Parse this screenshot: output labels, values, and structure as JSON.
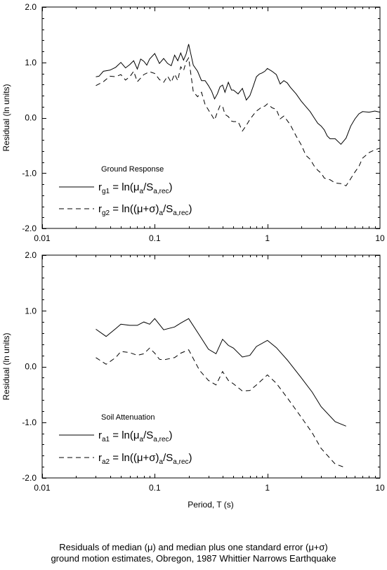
{
  "chart_data": [
    {
      "type": "line",
      "title": "",
      "xlabel": "",
      "ylabel": "Residual (ln units)",
      "xscale": "log",
      "xlim": [
        0.01,
        10
      ],
      "ylim": [
        -2.0,
        2.0
      ],
      "xticks": [
        "0.01",
        "0.1",
        "1",
        "10"
      ],
      "yticks": [
        "2.0",
        "1.0",
        "0.0",
        "-1.0",
        "-2.0"
      ],
      "grid": false,
      "legend_title": "Ground Response",
      "legend_placement": "lower-left",
      "legend": [
        {
          "base": "r",
          "sub": "g1",
          "eq": " = ln(",
          "mid": "μ",
          "mid_sub": "a",
          "slash": "/S",
          "tail_sub": "a,rec",
          "end": ")"
        },
        {
          "base": "r",
          "sub": "g2",
          "eq": " = ln((",
          "mid": "μ+σ)",
          "mid_sub": "a",
          "slash": "/S",
          "tail_sub": "a,rec",
          "end": ")"
        }
      ],
      "series": [
        {
          "style": "solid",
          "x": [
            0.03,
            0.032,
            0.035,
            0.04,
            0.045,
            0.05,
            0.055,
            0.06,
            0.065,
            0.07,
            0.075,
            0.08,
            0.085,
            0.09,
            0.1,
            0.11,
            0.12,
            0.13,
            0.14,
            0.15,
            0.16,
            0.17,
            0.18,
            0.19,
            0.2,
            0.22,
            0.24,
            0.26,
            0.28,
            0.3,
            0.32,
            0.34,
            0.36,
            0.38,
            0.4,
            0.42,
            0.45,
            0.48,
            0.5,
            0.55,
            0.6,
            0.65,
            0.7,
            0.75,
            0.8,
            0.85,
            0.9,
            0.95,
            1.0,
            1.1,
            1.2,
            1.3,
            1.4,
            1.5,
            1.6,
            1.8,
            2.0,
            2.2,
            2.4,
            2.6,
            2.8,
            3.0,
            3.2,
            3.4,
            3.6,
            3.8,
            4.0,
            4.5,
            5.0,
            5.5,
            6.0,
            6.5,
            7.0,
            8.0,
            9.0,
            10.0
          ],
          "values": [
            0.74,
            0.75,
            0.84,
            0.86,
            0.91,
            1.0,
            0.9,
            0.96,
            1.03,
            0.88,
            1.06,
            1.02,
            0.95,
            1.06,
            1.16,
            0.98,
            1.07,
            0.98,
            0.94,
            1.13,
            1.03,
            1.17,
            1.04,
            1.15,
            1.33,
            0.95,
            0.84,
            0.67,
            0.67,
            0.58,
            0.48,
            0.34,
            0.43,
            0.56,
            0.59,
            0.46,
            0.64,
            0.5,
            0.5,
            0.43,
            0.53,
            0.32,
            0.4,
            0.57,
            0.74,
            0.79,
            0.81,
            0.84,
            0.89,
            0.84,
            0.78,
            0.61,
            0.67,
            0.63,
            0.55,
            0.43,
            0.3,
            0.2,
            0.11,
            0.0,
            -0.1,
            -0.15,
            -0.22,
            -0.33,
            -0.38,
            -0.38,
            -0.38,
            -0.48,
            -0.37,
            -0.15,
            -0.02,
            0.07,
            0.11,
            0.1,
            0.12,
            0.1
          ]
        },
        {
          "style": "dashed",
          "x": [
            0.03,
            0.035,
            0.04,
            0.045,
            0.05,
            0.055,
            0.06,
            0.065,
            0.07,
            0.08,
            0.09,
            0.1,
            0.11,
            0.12,
            0.13,
            0.14,
            0.15,
            0.16,
            0.17,
            0.18,
            0.19,
            0.2,
            0.22,
            0.24,
            0.26,
            0.28,
            0.3,
            0.32,
            0.34,
            0.36,
            0.38,
            0.4,
            0.42,
            0.45,
            0.48,
            0.5,
            0.55,
            0.6,
            0.65,
            0.7,
            0.75,
            0.8,
            0.85,
            0.9,
            0.95,
            1.0,
            1.1,
            1.2,
            1.3,
            1.4,
            1.5,
            1.6,
            1.8,
            2.0,
            2.2,
            2.4,
            2.6,
            2.8,
            3.0,
            3.2,
            3.4,
            3.6,
            4.0,
            4.5,
            5.0,
            5.5,
            6.0,
            6.5,
            7.0,
            8.0,
            9.0,
            10.0
          ],
          "values": [
            0.58,
            0.65,
            0.75,
            0.74,
            0.78,
            0.68,
            0.74,
            0.84,
            0.65,
            0.78,
            0.83,
            0.8,
            0.69,
            0.64,
            0.75,
            0.64,
            0.79,
            0.67,
            0.92,
            0.85,
            1.01,
            1.08,
            0.47,
            0.38,
            0.46,
            0.24,
            0.14,
            0.05,
            -0.04,
            0.1,
            0.22,
            0.21,
            0.06,
            0.02,
            -0.06,
            -0.07,
            -0.07,
            -0.24,
            -0.14,
            -0.03,
            0.05,
            0.12,
            0.16,
            0.2,
            0.21,
            0.25,
            0.18,
            0.15,
            -0.02,
            0.03,
            -0.05,
            -0.13,
            -0.33,
            -0.49,
            -0.68,
            -0.75,
            -0.87,
            -0.95,
            -1.0,
            -1.09,
            -1.11,
            -1.12,
            -1.18,
            -1.19,
            -1.23,
            -1.1,
            -0.98,
            -0.88,
            -0.73,
            -0.63,
            -0.58,
            -0.55
          ]
        }
      ]
    },
    {
      "type": "line",
      "title": "",
      "xlabel": "Period, T (s)",
      "ylabel": "Residual (ln units)",
      "xscale": "log",
      "xlim": [
        0.01,
        10
      ],
      "ylim": [
        -2.0,
        2.0
      ],
      "xticks": [
        "0.01",
        "0.1",
        "1",
        "10"
      ],
      "yticks": [
        "2.0",
        "1.0",
        "0.0",
        "-1.0",
        "-2.0"
      ],
      "grid": false,
      "legend_title": "Soil Attenuation",
      "legend_placement": "lower-left",
      "legend": [
        {
          "base": "r",
          "sub": "a1",
          "eq": " = ln(",
          "mid": "μ",
          "mid_sub": "a",
          "slash": "/S",
          "tail_sub": "a,rec",
          "end": ")"
        },
        {
          "base": "r",
          "sub": "a2",
          "eq": " = ln((",
          "mid": "μ+σ)",
          "mid_sub": "a",
          "slash": "/S",
          "tail_sub": "a,rec",
          "end": ")"
        }
      ],
      "series": [
        {
          "style": "solid",
          "x": [
            0.03,
            0.037,
            0.045,
            0.05,
            0.06,
            0.07,
            0.08,
            0.09,
            0.1,
            0.12,
            0.15,
            0.17,
            0.2,
            0.25,
            0.3,
            0.35,
            0.4,
            0.45,
            0.5,
            0.6,
            0.7,
            0.8,
            1.0,
            1.2,
            1.5,
            2.0,
            2.5,
            3.0,
            4.0,
            5.0
          ],
          "values": [
            0.67,
            0.54,
            0.68,
            0.76,
            0.74,
            0.74,
            0.8,
            0.76,
            0.86,
            0.66,
            0.71,
            0.78,
            0.86,
            0.56,
            0.31,
            0.23,
            0.49,
            0.38,
            0.33,
            0.17,
            0.2,
            0.36,
            0.47,
            0.34,
            0.12,
            -0.2,
            -0.46,
            -0.72,
            -0.99,
            -1.07
          ]
        },
        {
          "style": "dashed",
          "x": [
            0.03,
            0.037,
            0.045,
            0.05,
            0.06,
            0.07,
            0.08,
            0.09,
            0.1,
            0.11,
            0.12,
            0.15,
            0.17,
            0.2,
            0.25,
            0.3,
            0.35,
            0.4,
            0.45,
            0.5,
            0.6,
            0.7,
            0.8,
            1.0,
            1.2,
            1.5,
            2.0,
            2.5,
            3.0,
            4.0,
            5.0
          ],
          "values": [
            0.16,
            0.04,
            0.16,
            0.27,
            0.25,
            0.2,
            0.23,
            0.33,
            0.24,
            0.13,
            0.12,
            0.16,
            0.24,
            0.3,
            -0.07,
            -0.25,
            -0.33,
            -0.09,
            -0.25,
            -0.31,
            -0.44,
            -0.43,
            -0.33,
            -0.15,
            -0.3,
            -0.56,
            -0.91,
            -1.19,
            -1.47,
            -1.75,
            -1.82
          ]
        }
      ]
    }
  ],
  "caption": {
    "line1": "Residuals of median (μ) and median plus one standard error (μ+σ)",
    "line2": "ground motion estimates, Obregon, 1987 Whittier Narrows Earthquake"
  }
}
